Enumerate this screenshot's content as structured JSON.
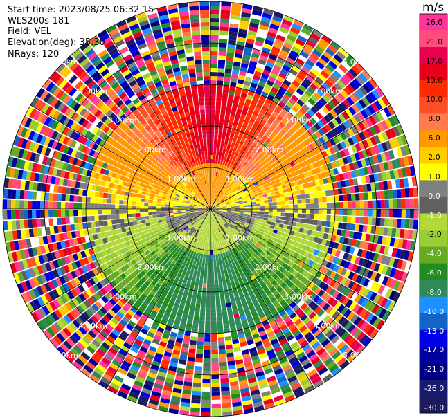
{
  "header": {
    "start_time": "Start time: 2023/08/25 06:32:15",
    "instrument": "WLS200s-181",
    "field": "Field: VEL",
    "elevation": "Elevation(deg): 35.30",
    "nrays": "NRays: 120"
  },
  "colorbar": {
    "unit": "m/s",
    "ticks": [
      "26.0",
      "21.0",
      "17.0",
      "13.0",
      "10.0",
      "8.0",
      "6.0",
      "2.0",
      "1.0",
      "0.0",
      "-1.0",
      "-2.0",
      "-4.0",
      "-6.0",
      "-8.0",
      "-10.0",
      "-13.0",
      "-17.0",
      "-21.0",
      "-26.0",
      "-30.0"
    ],
    "colors": [
      "#ff3399",
      "#ff4d80",
      "#e8004d",
      "#e8001a",
      "#ff2a00",
      "#ff4d26",
      "#ff7a4d",
      "#ff9900",
      "#ffcc00",
      "#ffff00",
      "#808080",
      "#606060",
      "#b4d837",
      "#9acd32",
      "#66aa22",
      "#228b22",
      "#2e8b57",
      "#1e90ff",
      "#1464c8",
      "#0000e6",
      "#0000a0",
      "#000080",
      "#191970",
      "#1c1c5c"
    ]
  },
  "chart_data": {
    "type": "ppi",
    "field": "VEL",
    "units": "m/s",
    "nrays": 120,
    "elevation_deg": 35.3,
    "range_labels": [
      "1.00km",
      "2.00km",
      "3.00km",
      "4.00km",
      "5.00km"
    ],
    "range_rings_km": [
      1,
      2,
      3,
      4,
      5
    ],
    "max_range_km": 5.0,
    "spoke_angles_deg": [
      0,
      30,
      60,
      90,
      120,
      150
    ],
    "valid_data_range_km": 3.0,
    "velocity_by_azimuth": [
      {
        "azimuth_deg": 0,
        "velocity": 17.0
      },
      {
        "azimuth_deg": 45,
        "velocity": 6.0
      },
      {
        "azimuth_deg": 90,
        "velocity": 0.0
      },
      {
        "azimuth_deg": 135,
        "velocity": -8.0
      },
      {
        "azimuth_deg": 180,
        "velocity": -12.0
      },
      {
        "azimuth_deg": 225,
        "velocity": -8.0
      },
      {
        "azimuth_deg": 270,
        "velocity": 0.0
      },
      {
        "azimuth_deg": 315,
        "velocity": 6.0
      }
    ]
  }
}
